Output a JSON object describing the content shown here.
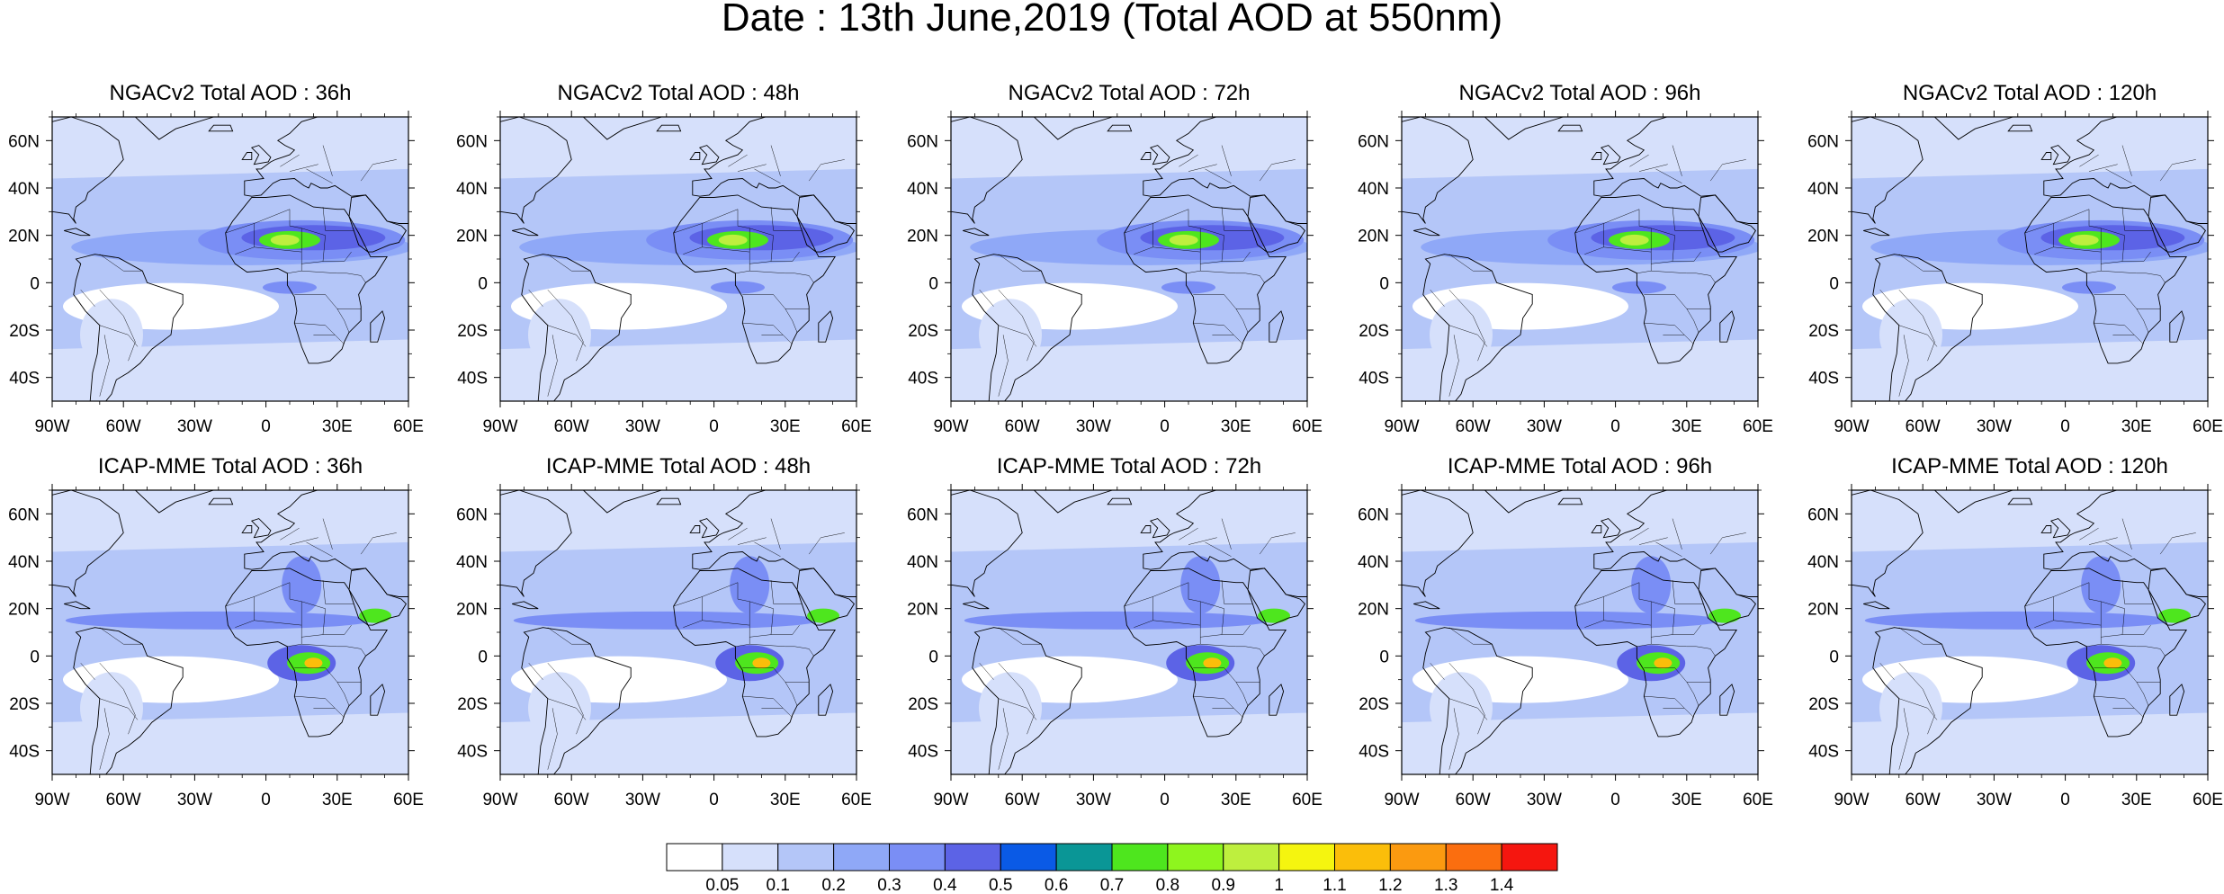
{
  "title": "Date : 13th June,2019 (Total AOD at 550nm)",
  "panels": [
    {
      "title": "NGACv2 Total AOD : 36h"
    },
    {
      "title": "NGACv2 Total AOD : 48h"
    },
    {
      "title": "NGACv2 Total AOD : 72h"
    },
    {
      "title": "NGACv2 Total AOD : 96h"
    },
    {
      "title": "NGACv2 Total AOD : 120h"
    },
    {
      "title": "ICAP-MME Total AOD : 36h"
    },
    {
      "title": "ICAP-MME Total AOD : 48h"
    },
    {
      "title": "ICAP-MME Total AOD : 72h"
    },
    {
      "title": "ICAP-MME Total AOD : 96h"
    },
    {
      "title": "ICAP-MME Total AOD : 120h"
    }
  ],
  "map_extent": {
    "lon": [
      -90,
      60
    ],
    "lat": [
      -50,
      70
    ]
  },
  "lon_ticks": [
    {
      "v": -90,
      "label": "90W"
    },
    {
      "v": -60,
      "label": "60W"
    },
    {
      "v": -30,
      "label": "30W"
    },
    {
      "v": 0,
      "label": "0"
    },
    {
      "v": 30,
      "label": "30E"
    },
    {
      "v": 60,
      "label": "60E"
    }
  ],
  "lat_ticks": [
    {
      "v": 60,
      "label": "60N"
    },
    {
      "v": 40,
      "label": "40N"
    },
    {
      "v": 20,
      "label": "20N"
    },
    {
      "v": 0,
      "label": "0"
    },
    {
      "v": -20,
      "label": "20S"
    },
    {
      "v": -40,
      "label": "40S"
    }
  ],
  "colorbar": {
    "colors": [
      "#ffffff",
      "#d6e0fb",
      "#b4c6f8",
      "#8fa8f7",
      "#7a8ef5",
      "#5c63e6",
      "#0a5ae6",
      "#0a9696",
      "#4ee61e",
      "#8ef51e",
      "#beef3e",
      "#f5f50f",
      "#fbbe0a",
      "#fb9a10",
      "#fb6e0f",
      "#f5160f"
    ],
    "labels": [
      "0.05",
      "0.1",
      "0.2",
      "0.3",
      "0.4",
      "0.5",
      "0.6",
      "0.7",
      "0.8",
      "0.9",
      "1",
      "1.1",
      "1.2",
      "1.3",
      "1.4"
    ]
  }
}
